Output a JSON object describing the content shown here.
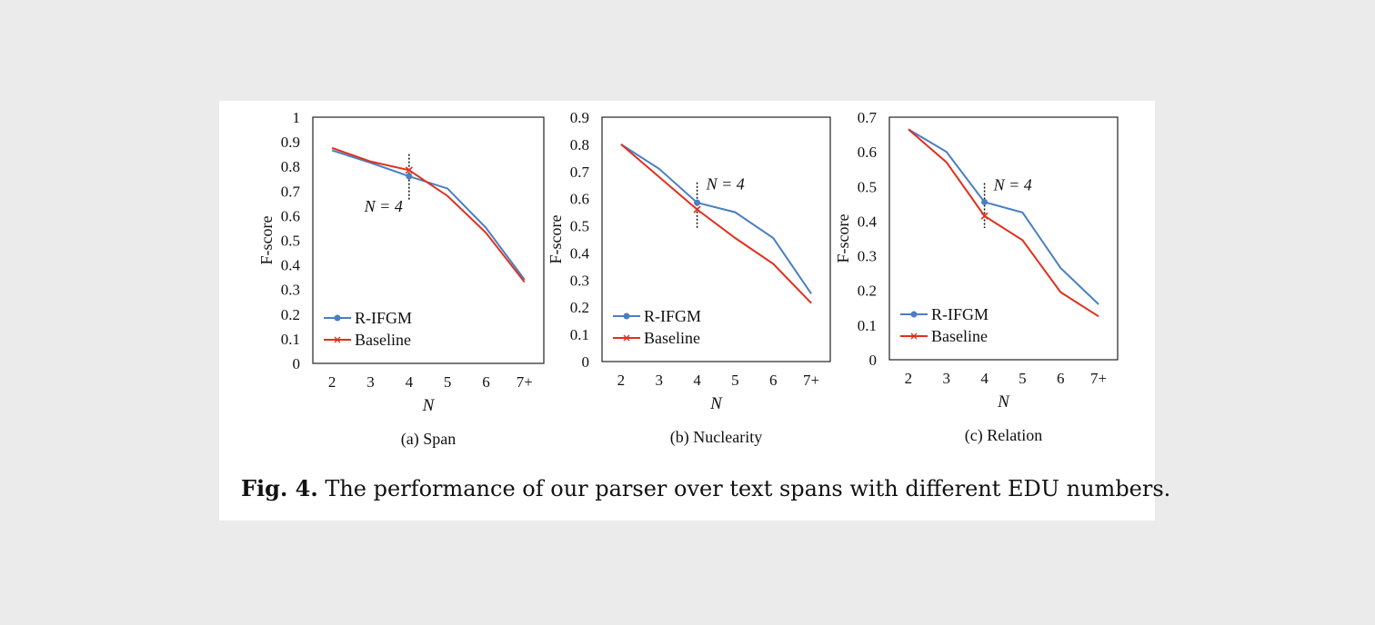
{
  "figure": {
    "caption_label": "Fig. 4.",
    "caption_text": "The performance of our parser over text spans with different EDU numbers."
  },
  "colors": {
    "r_ifgm": "#4a7fc1",
    "baseline": "#e0301e"
  },
  "chart_data": [
    {
      "type": "line",
      "subcaption": "(a) Span",
      "xlabel": "N",
      "ylabel": "F-score",
      "categories": [
        "2",
        "3",
        "4",
        "5",
        "6",
        "7+"
      ],
      "ylim": [
        0,
        1
      ],
      "yticks": [
        "0",
        "0.1",
        "0.2",
        "0.3",
        "0.4",
        "0.5",
        "0.6",
        "0.7",
        "0.8",
        "0.9",
        "1"
      ],
      "annotation": {
        "text": "N = 4",
        "at": "4",
        "range": [
          0.66,
          0.85
        ]
      },
      "legend": "bottom-left",
      "series": [
        {
          "name": "R-IFGM",
          "values": [
            0.865,
            0.815,
            0.76,
            0.71,
            0.55,
            0.34
          ]
        },
        {
          "name": "Baseline",
          "values": [
            0.875,
            0.82,
            0.785,
            0.68,
            0.53,
            0.33
          ]
        }
      ]
    },
    {
      "type": "line",
      "subcaption": "(b) Nuclearity",
      "xlabel": "N",
      "ylabel": "F-score",
      "categories": [
        "2",
        "3",
        "4",
        "5",
        "6",
        "7+"
      ],
      "ylim": [
        0,
        0.9
      ],
      "yticks": [
        "0",
        "0.1",
        "0.2",
        "0.3",
        "0.4",
        "0.5",
        "0.6",
        "0.7",
        "0.8",
        "0.9"
      ],
      "annotation": {
        "text": "N = 4",
        "at": "4",
        "range": [
          0.49,
          0.66
        ]
      },
      "legend": "bottom-left",
      "series": [
        {
          "name": "R-IFGM",
          "values": [
            0.8,
            0.71,
            0.585,
            0.55,
            0.455,
            0.25
          ]
        },
        {
          "name": "Baseline",
          "values": [
            0.8,
            0.68,
            0.56,
            0.455,
            0.36,
            0.215
          ]
        }
      ]
    },
    {
      "type": "line",
      "subcaption": "(c) Relation",
      "xlabel": "N",
      "ylabel": "F-score",
      "categories": [
        "2",
        "3",
        "4",
        "5",
        "6",
        "7+"
      ],
      "ylim": [
        0,
        0.7
      ],
      "yticks": [
        "0",
        "0.1",
        "0.2",
        "0.3",
        "0.4",
        "0.5",
        "0.6",
        "0.7"
      ],
      "annotation": {
        "text": "N = 4",
        "at": "4",
        "range": [
          0.38,
          0.51
        ]
      },
      "legend": "bottom-left",
      "series": [
        {
          "name": "R-IFGM",
          "values": [
            0.665,
            0.6,
            0.455,
            0.425,
            0.265,
            0.16
          ]
        },
        {
          "name": "Baseline",
          "values": [
            0.665,
            0.57,
            0.415,
            0.345,
            0.195,
            0.125
          ]
        }
      ]
    }
  ]
}
